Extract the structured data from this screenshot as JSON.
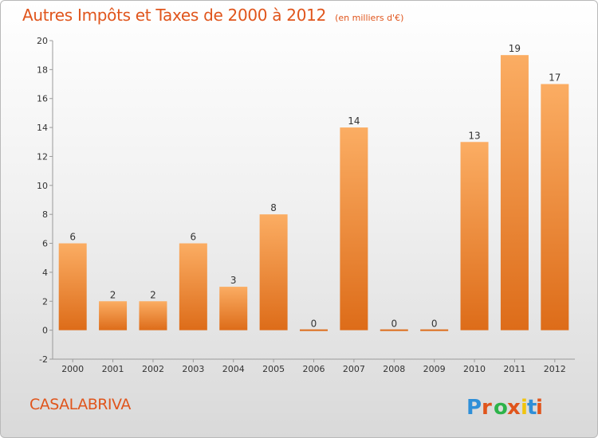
{
  "header": {
    "title": "Autres Impôts et Taxes de 2000 à 2012",
    "unit": "(en milliers d'€)"
  },
  "commune": "CASALABRIVA",
  "brand": {
    "logo_text": "Proxiti",
    "letter_colors": [
      "#2f8fd8",
      "#e0551c",
      "#2db34a",
      "#e0551c",
      "#f1c40f",
      "#2f8fd8",
      "#e0551c"
    ]
  },
  "colors": {
    "bar_light": "#fbad63",
    "bar_dark": "#dd6c19",
    "text": "#333333",
    "grid": "#9a9a9a"
  },
  "chart_data": {
    "type": "bar",
    "categories": [
      "2000",
      "2001",
      "2002",
      "2003",
      "2004",
      "2005",
      "2006",
      "2007",
      "2008",
      "2009",
      "2010",
      "2011",
      "2012"
    ],
    "values": [
      6,
      2,
      2,
      6,
      3,
      8,
      0,
      14,
      0,
      0,
      13,
      19,
      17
    ],
    "data_labels": [
      "6",
      "2",
      "2",
      "6",
      "3",
      "8",
      "0",
      "14",
      "0",
      "0",
      "13",
      "19",
      "17"
    ],
    "ylim": [
      -2,
      20
    ],
    "yticks": [
      -2,
      0,
      2,
      4,
      6,
      8,
      10,
      12,
      14,
      16,
      18,
      20
    ],
    "grid": false,
    "title": "Autres Impôts et Taxes de 2000 à 2012",
    "xlabel": "",
    "ylabel": ""
  }
}
